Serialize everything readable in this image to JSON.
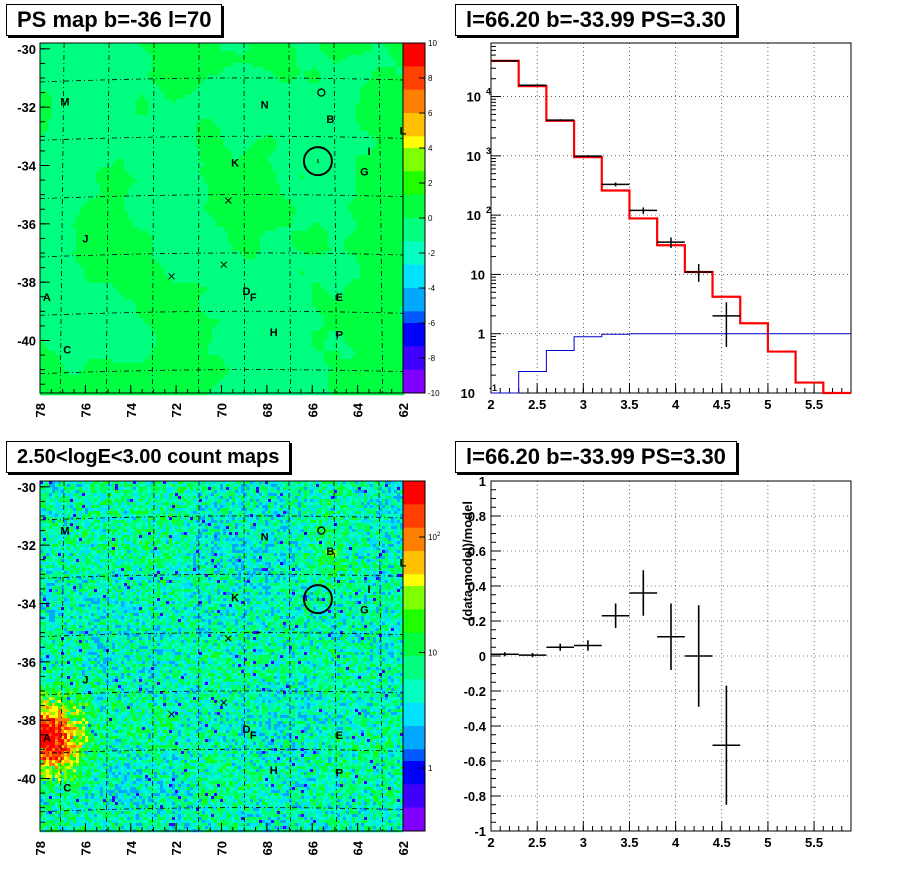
{
  "panels": {
    "top_left_title": "PS map b=-36 l=70",
    "top_right_title": "l=66.20 b=-33.99 PS=3.30",
    "bottom_left_title": "2.50<logE<3.00 count maps",
    "bottom_right_title": "l=66.20 b=-33.99 PS=3.30"
  },
  "chart_data": [
    {
      "type": "heatmap",
      "title": "PS map b=-36 l=70",
      "x_ticks": [
        "78",
        "76",
        "74",
        "72",
        "70",
        "68",
        "66",
        "64",
        "62"
      ],
      "y_ticks": [
        "-30",
        "-32",
        "-34",
        "-36",
        "-38",
        "-40"
      ],
      "xlim": [
        78,
        62
      ],
      "ylim": [
        -41.8,
        -29.8
      ],
      "colorbar": {
        "range": [
          -10,
          10
        ],
        "ticks": [
          "10",
          "8",
          "6",
          "4",
          "2",
          "0",
          "-2",
          "-4",
          "-6",
          "-8",
          "-10"
        ]
      },
      "source_labels": [
        {
          "text": "M",
          "l": 76.9,
          "b": -31.8
        },
        {
          "text": "N",
          "l": 68.1,
          "b": -31.9
        },
        {
          "text": "B",
          "l": 65.2,
          "b": -32.4
        },
        {
          "text": "L",
          "l": 62.0,
          "b": -32.8
        },
        {
          "text": "I",
          "l": 63.5,
          "b": -33.5
        },
        {
          "text": "K",
          "l": 69.4,
          "b": -33.9
        },
        {
          "text": "G",
          "l": 63.7,
          "b": -34.2
        },
        {
          "text": "J",
          "l": 76.0,
          "b": -36.5
        },
        {
          "text": "A",
          "l": 77.7,
          "b": -38.5
        },
        {
          "text": "D",
          "l": 68.9,
          "b": -38.3
        },
        {
          "text": "F",
          "l": 68.6,
          "b": -38.5
        },
        {
          "text": "E",
          "l": 64.8,
          "b": -38.5
        },
        {
          "text": "H",
          "l": 67.7,
          "b": -39.7
        },
        {
          "text": "P",
          "l": 64.8,
          "b": -39.8
        },
        {
          "text": "C",
          "l": 76.8,
          "b": -40.3
        }
      ]
    },
    {
      "type": "line",
      "title": "l=66.20 b=-33.99 PS=3.30",
      "x_ticks": [
        "2",
        "2.5",
        "3",
        "3.5",
        "4",
        "4.5",
        "5",
        "5.5"
      ],
      "y_ticks": [
        "10^-1",
        "1",
        "10",
        "10^2",
        "10^3",
        "10^4"
      ],
      "xlim": [
        2,
        5.9
      ],
      "ylim": [
        0.1,
        80000
      ],
      "yscale": "log",
      "series": [
        {
          "color": "#ff0000",
          "edges": [
            2.0,
            2.3,
            2.6,
            2.9,
            3.2,
            3.5,
            3.8,
            4.1,
            4.4,
            4.7,
            5.0,
            5.3,
            5.6,
            5.9
          ],
          "values": [
            40000,
            15000,
            3900,
            950,
            260,
            88,
            31,
            11,
            4.2,
            1.5,
            0.5,
            0.15,
            0.08
          ]
        },
        {
          "color": "#0000cc",
          "edges": [
            2.0,
            2.3,
            2.6,
            2.9,
            3.2,
            3.5,
            3.8,
            4.1,
            4.4,
            4.7,
            5.0,
            5.3,
            5.6,
            5.9
          ],
          "values": [
            0.05,
            0.23,
            0.52,
            0.89,
            0.98,
            1.0,
            1.0,
            1.0,
            1.0,
            1.0,
            1.0,
            1.0,
            1.0
          ]
        },
        {
          "color": "#000000",
          "points": [
            {
              "x": 2.15,
              "y": 40000,
              "xerr": 0.15,
              "ylo": 39000,
              "yhi": 41000
            },
            {
              "x": 2.45,
              "y": 15500,
              "xerr": 0.15,
              "ylo": 15000,
              "yhi": 16000
            },
            {
              "x": 2.75,
              "y": 4000,
              "xerr": 0.15,
              "ylo": 3850,
              "yhi": 4150
            },
            {
              "x": 3.05,
              "y": 990,
              "xerr": 0.15,
              "ylo": 950,
              "yhi": 1030
            },
            {
              "x": 3.35,
              "y": 330,
              "xerr": 0.15,
              "ylo": 305,
              "yhi": 355
            },
            {
              "x": 3.65,
              "y": 120,
              "xerr": 0.15,
              "ylo": 105,
              "yhi": 135
            },
            {
              "x": 3.95,
              "y": 35,
              "xerr": 0.15,
              "ylo": 28,
              "yhi": 42
            },
            {
              "x": 4.25,
              "y": 11,
              "xerr": 0.15,
              "ylo": 7.5,
              "yhi": 15
            },
            {
              "x": 4.55,
              "y": 2.0,
              "xerr": 0.15,
              "ylo": 0.6,
              "yhi": 3.4
            }
          ]
        }
      ]
    },
    {
      "type": "heatmap",
      "title": "2.50<logE<3.00 count maps",
      "x_ticks": [
        "78",
        "76",
        "74",
        "72",
        "70",
        "68",
        "66",
        "64",
        "62"
      ],
      "y_ticks": [
        "-30",
        "-32",
        "-34",
        "-36",
        "-38",
        "-40"
      ],
      "xlim": [
        78,
        62
      ],
      "ylim": [
        -41.8,
        -29.8
      ],
      "colorbar": {
        "scale": "log",
        "ticks": [
          "10^2",
          "10",
          "1"
        ]
      },
      "source_labels": [
        {
          "text": "M",
          "l": 76.9,
          "b": -31.5
        },
        {
          "text": "N",
          "l": 68.1,
          "b": -31.7
        },
        {
          "text": "B",
          "l": 65.2,
          "b": -32.2
        },
        {
          "text": "L",
          "l": 62.0,
          "b": -32.6
        },
        {
          "text": "I",
          "l": 63.5,
          "b": -33.5
        },
        {
          "text": "K",
          "l": 69.4,
          "b": -33.8
        },
        {
          "text": "G",
          "l": 63.7,
          "b": -34.2
        },
        {
          "text": "J",
          "l": 76.0,
          "b": -36.6
        },
        {
          "text": "A",
          "l": 77.7,
          "b": -38.6
        },
        {
          "text": "D",
          "l": 68.9,
          "b": -38.3
        },
        {
          "text": "F",
          "l": 68.6,
          "b": -38.5
        },
        {
          "text": "E",
          "l": 64.8,
          "b": -38.5
        },
        {
          "text": "H",
          "l": 67.7,
          "b": -39.7
        },
        {
          "text": "P",
          "l": 64.8,
          "b": -39.8
        },
        {
          "text": "C",
          "l": 76.8,
          "b": -40.3
        }
      ]
    },
    {
      "type": "scatter",
      "title": "l=66.20 b=-33.99 PS=3.30",
      "ylabel": "(data-model)/model",
      "x_ticks": [
        "2",
        "2.5",
        "3",
        "3.5",
        "4",
        "4.5",
        "5",
        "5.5"
      ],
      "y_ticks": [
        "1",
        "0.8",
        "0.6",
        "0.4",
        "0.2",
        "0",
        "-0.2",
        "-0.4",
        "-0.6",
        "-0.8",
        "-1"
      ],
      "xlim": [
        2,
        5.9
      ],
      "ylim": [
        -1,
        1
      ],
      "grid": true,
      "points": [
        {
          "x": 2.15,
          "y": 0.01,
          "xerr": 0.15,
          "yerr": 0.012
        },
        {
          "x": 2.45,
          "y": 0.005,
          "xerr": 0.15,
          "yerr": 0.012
        },
        {
          "x": 2.75,
          "y": 0.05,
          "xerr": 0.15,
          "yerr": 0.02
        },
        {
          "x": 3.05,
          "y": 0.06,
          "xerr": 0.15,
          "yerr": 0.03
        },
        {
          "x": 3.35,
          "y": 0.23,
          "xerr": 0.15,
          "yerr": 0.07
        },
        {
          "x": 3.65,
          "y": 0.36,
          "xerr": 0.15,
          "yerr": 0.13
        },
        {
          "x": 3.95,
          "y": 0.11,
          "xerr": 0.15,
          "yerr": 0.19
        },
        {
          "x": 4.25,
          "y": 0.0,
          "xerr": 0.15,
          "yerr": 0.29
        },
        {
          "x": 4.55,
          "y": -0.51,
          "xerr": 0.15,
          "yerr": 0.34
        }
      ]
    }
  ]
}
